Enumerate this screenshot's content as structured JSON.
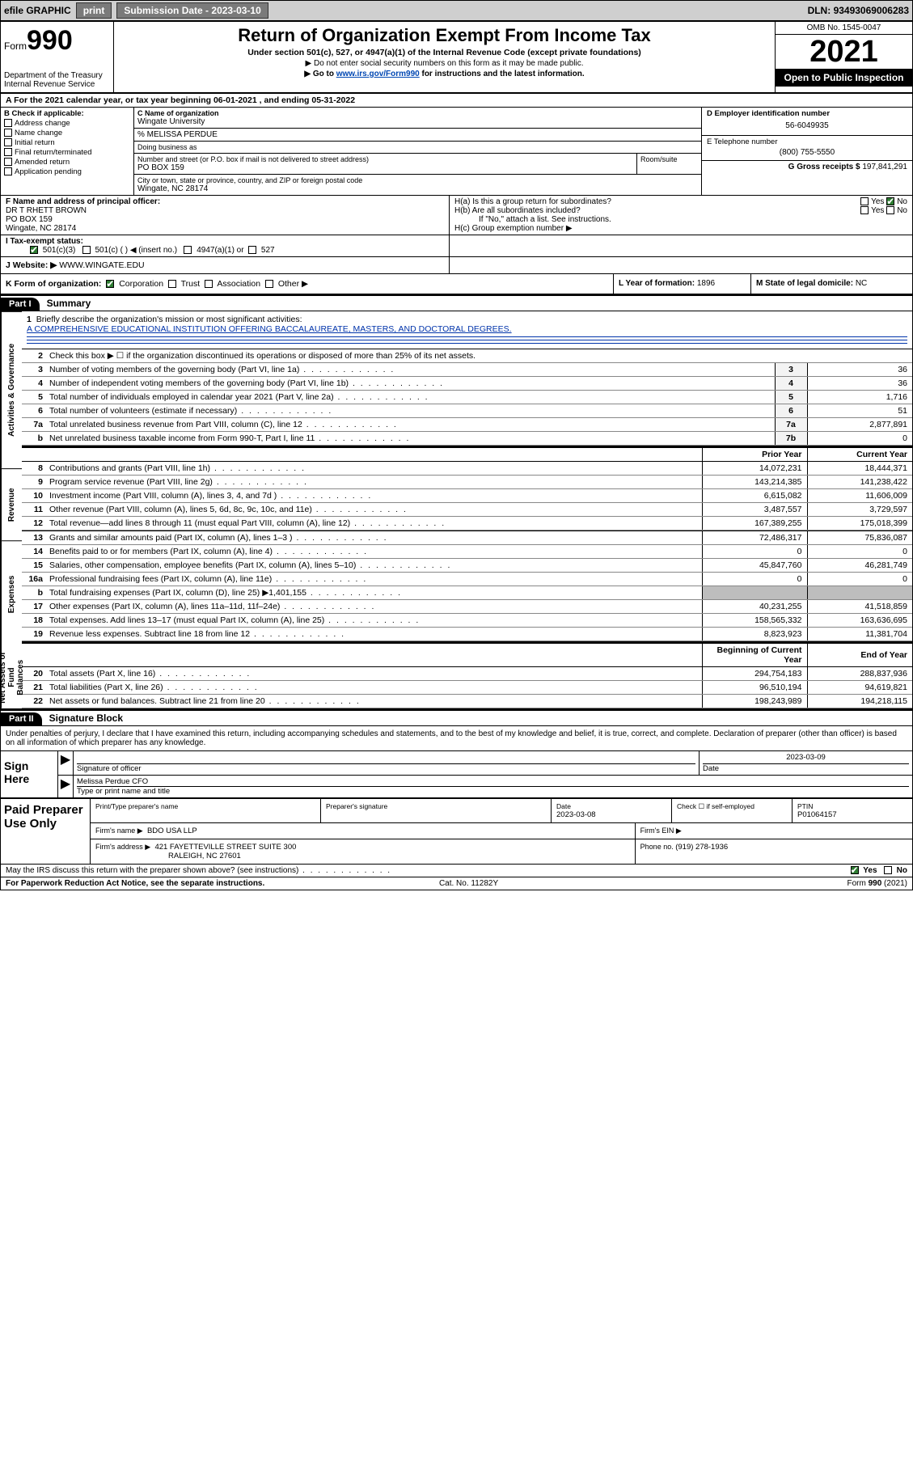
{
  "topbar": {
    "efile": "efile GRAPHIC",
    "print": "print",
    "sub_lbl": "Submission Date - ",
    "sub_date": "2023-03-10",
    "dln_lbl": "DLN: ",
    "dln": "93493069006283"
  },
  "hdr": {
    "form_word": "Form",
    "form_num": "990",
    "dept": "Department of the Treasury",
    "irs": "Internal Revenue Service",
    "title": "Return of Organization Exempt From Income Tax",
    "sub1": "Under section 501(c), 527, or 4947(a)(1) of the Internal Revenue Code (except private foundations)",
    "sub2": "▶ Do not enter social security numbers on this form as it may be made public.",
    "sub3_pre": "▶ Go to ",
    "sub3_link": "www.irs.gov/Form990",
    "sub3_post": " for instructions and the latest information.",
    "omb": "OMB No. 1545-0047",
    "year": "2021",
    "open": "Open to Public Inspection"
  },
  "row_a": {
    "text_pre": "A For the 2021 calendar year, or tax year beginning ",
    "begin": "06-01-2021",
    "mid": " , and ending ",
    "end": "05-31-2022"
  },
  "col_b": {
    "hdr": "B Check if applicable:",
    "items": [
      "Address change",
      "Name change",
      "Initial return",
      "Final return/terminated",
      "Amended return",
      "Application pending"
    ]
  },
  "col_c": {
    "c_lbl": "C Name of organization",
    "c_name": "Wingate University",
    "pct": "% MELISSA PERDUE",
    "dba_lbl": "Doing business as",
    "addr_lbl": "Number and street (or P.O. box if mail is not delivered to street address)",
    "addr": "PO BOX 159",
    "room_lbl": "Room/suite",
    "city_lbl": "City or town, state or province, country, and ZIP or foreign postal code",
    "city": "Wingate, NC  28174"
  },
  "col_de": {
    "d_lbl": "D Employer identification number",
    "d_val": "56-6049935",
    "e_lbl": "E Telephone number",
    "e_val": "(800) 755-5550",
    "g_lbl": "G Gross receipts $ ",
    "g_val": "197,841,291"
  },
  "row_f": {
    "lbl": "F Name and address of principal officer:",
    "name": "DR T RHETT BROWN",
    "addr": "PO BOX 159",
    "city": "Wingate, NC  28174"
  },
  "row_h": {
    "ha": "H(a)  Is this a group return for subordinates?",
    "hb": "H(b)  Are all subordinates included?",
    "hb_note": "If \"No,\" attach a list. See instructions.",
    "hc": "H(c)  Group exemption number ▶",
    "yes": "Yes",
    "no": "No"
  },
  "row_i": {
    "lbl": "I   Tax-exempt status:",
    "o1": "501(c)(3)",
    "o2": "501(c) (  ) ◀ (insert no.)",
    "o3": "4947(a)(1) or",
    "o4": "527"
  },
  "row_j": {
    "lbl": "J   Website: ▶ ",
    "val": "WWW.WINGATE.EDU"
  },
  "row_k": {
    "lbl": "K Form of organization:",
    "o1": "Corporation",
    "o2": "Trust",
    "o3": "Association",
    "o4": "Other ▶",
    "l_lbl": "L Year of formation: ",
    "l_val": "1896",
    "m_lbl": "M State of legal domicile: ",
    "m_val": "NC"
  },
  "part1": {
    "num": "Part I",
    "title": "Summary"
  },
  "line1": {
    "num": "1",
    "lbl": "Briefly describe the organization's mission or most significant activities:",
    "text": "A COMPREHENSIVE EDUCATIONAL INSTITUTION OFFERING BACCALAUREATE, MASTERS, AND DOCTORAL DEGREES."
  },
  "gov_lines": [
    {
      "n": "2",
      "d": "Check this box ▶ ☐  if the organization discontinued its operations or disposed of more than 25% of its net assets.",
      "b": "",
      "v": ""
    },
    {
      "n": "3",
      "d": "Number of voting members of the governing body (Part VI, line 1a)",
      "b": "3",
      "v": "36"
    },
    {
      "n": "4",
      "d": "Number of independent voting members of the governing body (Part VI, line 1b)",
      "b": "4",
      "v": "36"
    },
    {
      "n": "5",
      "d": "Total number of individuals employed in calendar year 2021 (Part V, line 2a)",
      "b": "5",
      "v": "1,716"
    },
    {
      "n": "6",
      "d": "Total number of volunteers (estimate if necessary)",
      "b": "6",
      "v": "51"
    },
    {
      "n": "7a",
      "d": "Total unrelated business revenue from Part VIII, column (C), line 12",
      "b": "7a",
      "v": "2,877,891"
    },
    {
      "n": "b",
      "d": "Net unrelated business taxable income from Form 990-T, Part I, line 11",
      "b": "7b",
      "v": "0"
    }
  ],
  "two_col_hdr": {
    "py": "Prior Year",
    "cy": "Current Year",
    "boc": "Beginning of Current Year",
    "eoy": "End of Year"
  },
  "rev_lines": [
    {
      "n": "8",
      "d": "Contributions and grants (Part VIII, line 1h)",
      "p": "14,072,231",
      "c": "18,444,371"
    },
    {
      "n": "9",
      "d": "Program service revenue (Part VIII, line 2g)",
      "p": "143,214,385",
      "c": "141,238,422"
    },
    {
      "n": "10",
      "d": "Investment income (Part VIII, column (A), lines 3, 4, and 7d )",
      "p": "6,615,082",
      "c": "11,606,009"
    },
    {
      "n": "11",
      "d": "Other revenue (Part VIII, column (A), lines 5, 6d, 8c, 9c, 10c, and 11e)",
      "p": "3,487,557",
      "c": "3,729,597"
    },
    {
      "n": "12",
      "d": "Total revenue—add lines 8 through 11 (must equal Part VIII, column (A), line 12)",
      "p": "167,389,255",
      "c": "175,018,399"
    }
  ],
  "exp_lines": [
    {
      "n": "13",
      "d": "Grants and similar amounts paid (Part IX, column (A), lines 1–3 )",
      "p": "72,486,317",
      "c": "75,836,087"
    },
    {
      "n": "14",
      "d": "Benefits paid to or for members (Part IX, column (A), line 4)",
      "p": "0",
      "c": "0"
    },
    {
      "n": "15",
      "d": "Salaries, other compensation, employee benefits (Part IX, column (A), lines 5–10)",
      "p": "45,847,760",
      "c": "46,281,749"
    },
    {
      "n": "16a",
      "d": "Professional fundraising fees (Part IX, column (A), line 11e)",
      "p": "0",
      "c": "0"
    },
    {
      "n": "b",
      "d": "Total fundraising expenses (Part IX, column (D), line 25) ▶1,401,155",
      "p": "grey",
      "c": "grey"
    },
    {
      "n": "17",
      "d": "Other expenses (Part IX, column (A), lines 11a–11d, 11f–24e)",
      "p": "40,231,255",
      "c": "41,518,859"
    },
    {
      "n": "18",
      "d": "Total expenses. Add lines 13–17 (must equal Part IX, column (A), line 25)",
      "p": "158,565,332",
      "c": "163,636,695"
    },
    {
      "n": "19",
      "d": "Revenue less expenses. Subtract line 18 from line 12",
      "p": "8,823,923",
      "c": "11,381,704"
    }
  ],
  "net_lines": [
    {
      "n": "20",
      "d": "Total assets (Part X, line 16)",
      "p": "294,754,183",
      "c": "288,837,936"
    },
    {
      "n": "21",
      "d": "Total liabilities (Part X, line 26)",
      "p": "96,510,194",
      "c": "94,619,821"
    },
    {
      "n": "22",
      "d": "Net assets or fund balances. Subtract line 21 from line 20",
      "p": "198,243,989",
      "c": "194,218,115"
    }
  ],
  "vtabs": {
    "gov": "Activities & Governance",
    "rev": "Revenue",
    "exp": "Expenses",
    "net": "Net Assets or Fund Balances"
  },
  "part2": {
    "num": "Part II",
    "title": "Signature Block"
  },
  "sig_intro": "Under penalties of perjury, I declare that I have examined this return, including accompanying schedules and statements, and to the best of my knowledge and belief, it is true, correct, and complete. Declaration of preparer (other than officer) is based on all information of which preparer has any knowledge.",
  "sign": {
    "here": "Sign Here",
    "sig_lbl": "Signature of officer",
    "date_lbl": "Date",
    "date": "2023-03-09",
    "name": "Melissa Perdue CFO",
    "name_lbl": "Type or print name and title"
  },
  "paid": {
    "title": "Paid Preparer Use Only",
    "pt_name_lbl": "Print/Type preparer's name",
    "sig_lbl": "Preparer's signature",
    "date_lbl": "Date",
    "date": "2023-03-08",
    "check_lbl": "Check ☐ if self-employed",
    "ptin_lbl": "PTIN",
    "ptin": "P01064157",
    "firm_lbl": "Firm's name   ▶",
    "firm": "BDO USA LLP",
    "ein_lbl": "Firm's EIN ▶",
    "addr_lbl": "Firm's address ▶",
    "addr1": "421 FAYETTEVILLE STREET SUITE 300",
    "addr2": "RALEIGH, NC  27601",
    "phone_lbl": "Phone no. ",
    "phone": "(919) 278-1936"
  },
  "footer": {
    "discuss": "May the IRS discuss this return with the preparer shown above? (see instructions)",
    "yes": "Yes",
    "no": "No",
    "pra": "For Paperwork Reduction Act Notice, see the separate instructions.",
    "cat": "Cat. No. 11282Y",
    "form": "Form 990 (2021)"
  },
  "colors": {
    "link": "#0047b3",
    "green": "#2e7d32",
    "grey_bg": "#bdbdbd"
  }
}
